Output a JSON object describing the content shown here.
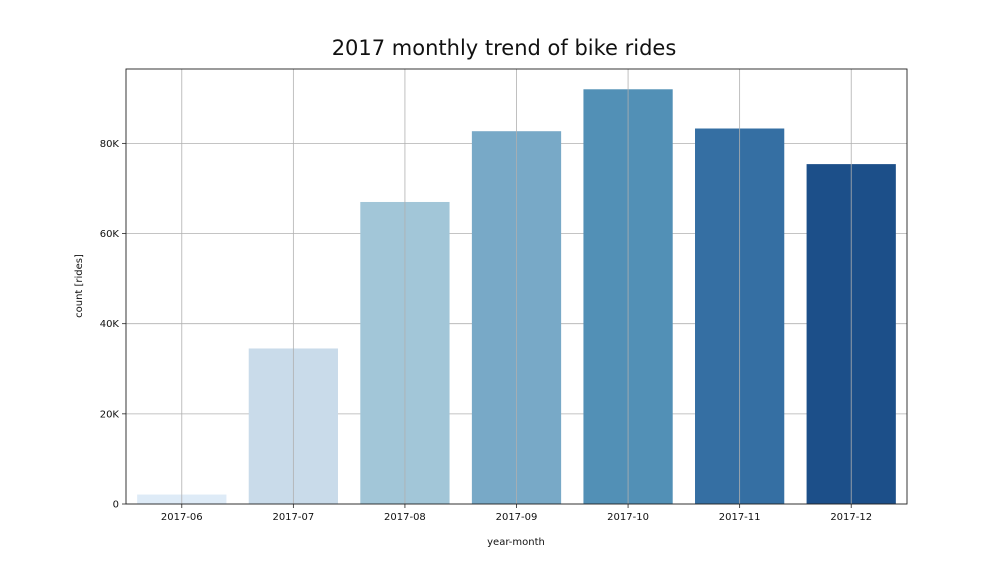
{
  "chart_data": {
    "type": "bar",
    "title": "2017 monthly trend of bike rides",
    "xlabel": "year-month",
    "ylabel": "count [rides]",
    "categories": [
      "2017-06",
      "2017-07",
      "2017-08",
      "2017-09",
      "2017-10",
      "2017-11",
      "2017-12"
    ],
    "values": [
      2100,
      34500,
      67000,
      82700,
      92000,
      83300,
      75400
    ],
    "colors": [
      "#deebf7",
      "#c9dbea",
      "#a2c6d8",
      "#78a9c7",
      "#5290b6",
      "#356fa3",
      "#1c4f89"
    ],
    "yticks": [
      0,
      20000,
      40000,
      60000,
      80000
    ],
    "ytick_labels": [
      "0",
      "20K",
      "40K",
      "60K",
      "80K"
    ],
    "ylim": [
      0,
      96500
    ],
    "grid": true,
    "legend": "none"
  }
}
